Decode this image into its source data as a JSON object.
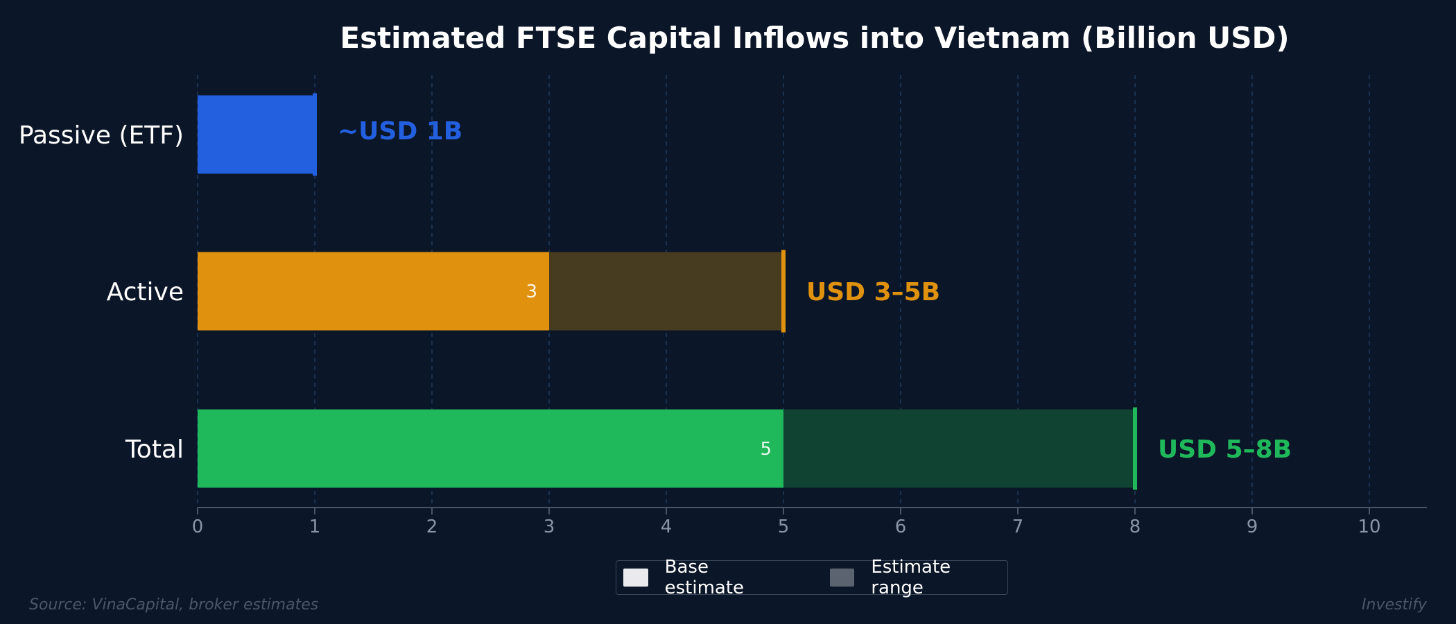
{
  "chart_data": {
    "type": "bar",
    "orientation": "horizontal",
    "stacked": true,
    "title": "Estimated FTSE Capital Inflows into Vietnam (Billion USD)",
    "xlabel": "",
    "ylabel": "",
    "xlim": [
      0,
      10.5
    ],
    "x_ticks": [
      0,
      1,
      2,
      3,
      4,
      5,
      6,
      7,
      8,
      9,
      10
    ],
    "grid": "vertical dashed",
    "categories": [
      "Passive (ETF)",
      "Active",
      "Total"
    ],
    "series": [
      {
        "name": "Base estimate",
        "values": [
          1,
          3,
          5
        ]
      },
      {
        "name": "Estimate range",
        "values": [
          0,
          2,
          3
        ]
      }
    ],
    "bar_colors": [
      "#2360e0",
      "#e0920e",
      "#1fb85a"
    ],
    "range_colors": [
      "#2360e0",
      "#473b20",
      "#114332"
    ],
    "inner_labels": [
      "",
      "3",
      "5"
    ],
    "end_labels": [
      "~USD 1B",
      "USD 3–5B",
      "USD 5–8B"
    ],
    "end_values": [
      1,
      5,
      8
    ],
    "legend": {
      "placement": "bottom-center",
      "items": [
        {
          "label": "Base estimate",
          "color": "#e9e9ee"
        },
        {
          "label": "Estimate range",
          "color": "#5a636f"
        }
      ]
    }
  },
  "footer": {
    "source": "Source: VinaCapital, broker estimates",
    "brand": "Investify"
  }
}
